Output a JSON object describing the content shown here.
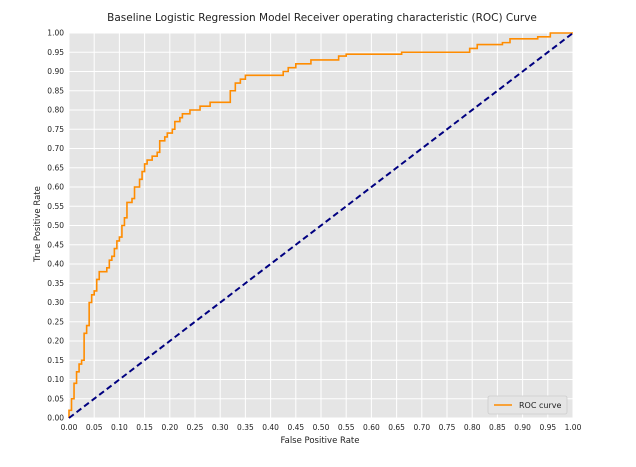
{
  "chart_data": {
    "type": "line",
    "title": "Baseline Logistic Regression Model Receiver operating characteristic (ROC) Curve",
    "xlabel": "False Positive Rate",
    "ylabel": "True Positive Rate",
    "xlim": [
      0,
      1
    ],
    "ylim": [
      0,
      1
    ],
    "x_ticks": [
      "0.00",
      "0.05",
      "0.10",
      "0.15",
      "0.20",
      "0.25",
      "0.30",
      "0.35",
      "0.40",
      "0.45",
      "0.50",
      "0.55",
      "0.60",
      "0.65",
      "0.70",
      "0.75",
      "0.80",
      "0.85",
      "0.90",
      "0.95",
      "1.00"
    ],
    "y_ticks": [
      "0.00",
      "0.05",
      "0.10",
      "0.15",
      "0.20",
      "0.25",
      "0.30",
      "0.35",
      "0.40",
      "0.45",
      "0.50",
      "0.55",
      "0.60",
      "0.65",
      "0.70",
      "0.75",
      "0.80",
      "0.85",
      "0.90",
      "0.95",
      "1.00"
    ],
    "grid": true,
    "legend_position": "lower-right",
    "series": [
      {
        "name": "ROC curve",
        "color": "#ff8c00",
        "style": "solid",
        "points": [
          [
            0.0,
            0.0
          ],
          [
            0.0,
            0.02
          ],
          [
            0.005,
            0.02
          ],
          [
            0.005,
            0.05
          ],
          [
            0.01,
            0.05
          ],
          [
            0.01,
            0.09
          ],
          [
            0.015,
            0.09
          ],
          [
            0.015,
            0.12
          ],
          [
            0.02,
            0.12
          ],
          [
            0.02,
            0.14
          ],
          [
            0.025,
            0.14
          ],
          [
            0.025,
            0.15
          ],
          [
            0.03,
            0.15
          ],
          [
            0.03,
            0.22
          ],
          [
            0.035,
            0.22
          ],
          [
            0.035,
            0.24
          ],
          [
            0.04,
            0.24
          ],
          [
            0.04,
            0.3
          ],
          [
            0.045,
            0.3
          ],
          [
            0.045,
            0.32
          ],
          [
            0.05,
            0.32
          ],
          [
            0.05,
            0.33
          ],
          [
            0.055,
            0.33
          ],
          [
            0.055,
            0.36
          ],
          [
            0.06,
            0.36
          ],
          [
            0.06,
            0.38
          ],
          [
            0.065,
            0.38
          ],
          [
            0.075,
            0.38
          ],
          [
            0.075,
            0.39
          ],
          [
            0.08,
            0.39
          ],
          [
            0.08,
            0.41
          ],
          [
            0.085,
            0.41
          ],
          [
            0.085,
            0.42
          ],
          [
            0.09,
            0.42
          ],
          [
            0.09,
            0.44
          ],
          [
            0.095,
            0.44
          ],
          [
            0.095,
            0.46
          ],
          [
            0.1,
            0.46
          ],
          [
            0.1,
            0.47
          ],
          [
            0.105,
            0.47
          ],
          [
            0.105,
            0.5
          ],
          [
            0.11,
            0.5
          ],
          [
            0.11,
            0.52
          ],
          [
            0.115,
            0.52
          ],
          [
            0.115,
            0.56
          ],
          [
            0.12,
            0.56
          ],
          [
            0.125,
            0.56
          ],
          [
            0.125,
            0.57
          ],
          [
            0.13,
            0.57
          ],
          [
            0.13,
            0.6
          ],
          [
            0.135,
            0.6
          ],
          [
            0.14,
            0.6
          ],
          [
            0.14,
            0.62
          ],
          [
            0.145,
            0.62
          ],
          [
            0.145,
            0.64
          ],
          [
            0.15,
            0.64
          ],
          [
            0.15,
            0.66
          ],
          [
            0.155,
            0.66
          ],
          [
            0.155,
            0.67
          ],
          [
            0.16,
            0.67
          ],
          [
            0.165,
            0.67
          ],
          [
            0.165,
            0.68
          ],
          [
            0.17,
            0.68
          ],
          [
            0.175,
            0.68
          ],
          [
            0.175,
            0.69
          ],
          [
            0.18,
            0.69
          ],
          [
            0.18,
            0.72
          ],
          [
            0.19,
            0.72
          ],
          [
            0.19,
            0.73
          ],
          [
            0.195,
            0.73
          ],
          [
            0.195,
            0.74
          ],
          [
            0.205,
            0.74
          ],
          [
            0.205,
            0.75
          ],
          [
            0.21,
            0.75
          ],
          [
            0.21,
            0.77
          ],
          [
            0.22,
            0.77
          ],
          [
            0.22,
            0.78
          ],
          [
            0.225,
            0.78
          ],
          [
            0.225,
            0.79
          ],
          [
            0.24,
            0.79
          ],
          [
            0.24,
            0.8
          ],
          [
            0.255,
            0.8
          ],
          [
            0.26,
            0.8
          ],
          [
            0.26,
            0.81
          ],
          [
            0.28,
            0.81
          ],
          [
            0.28,
            0.82
          ],
          [
            0.31,
            0.82
          ],
          [
            0.32,
            0.82
          ],
          [
            0.32,
            0.85
          ],
          [
            0.33,
            0.85
          ],
          [
            0.33,
            0.87
          ],
          [
            0.34,
            0.87
          ],
          [
            0.34,
            0.88
          ],
          [
            0.35,
            0.88
          ],
          [
            0.35,
            0.89
          ],
          [
            0.425,
            0.89
          ],
          [
            0.425,
            0.9
          ],
          [
            0.435,
            0.9
          ],
          [
            0.435,
            0.91
          ],
          [
            0.45,
            0.91
          ],
          [
            0.45,
            0.92
          ],
          [
            0.48,
            0.92
          ],
          [
            0.48,
            0.93
          ],
          [
            0.535,
            0.93
          ],
          [
            0.535,
            0.94
          ],
          [
            0.55,
            0.94
          ],
          [
            0.55,
            0.945
          ],
          [
            0.66,
            0.945
          ],
          [
            0.66,
            0.95
          ],
          [
            0.795,
            0.95
          ],
          [
            0.795,
            0.96
          ],
          [
            0.81,
            0.96
          ],
          [
            0.81,
            0.97
          ],
          [
            0.86,
            0.97
          ],
          [
            0.86,
            0.975
          ],
          [
            0.875,
            0.975
          ],
          [
            0.875,
            0.985
          ],
          [
            0.93,
            0.985
          ],
          [
            0.93,
            0.99
          ],
          [
            0.955,
            0.99
          ],
          [
            0.955,
            1.0
          ],
          [
            1.0,
            1.0
          ]
        ]
      },
      {
        "name": "",
        "color": "#000080",
        "style": "dashed",
        "points": [
          [
            0,
            0
          ],
          [
            1,
            1
          ]
        ]
      }
    ]
  }
}
